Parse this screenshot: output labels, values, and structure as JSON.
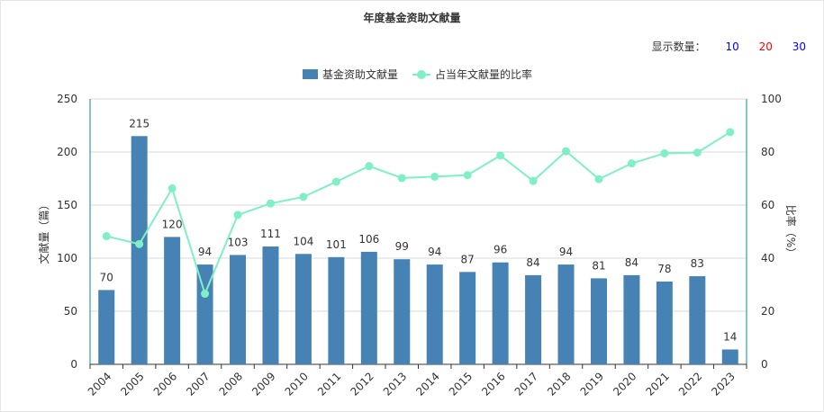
{
  "title": "年度基金资助文献量",
  "count_selector": {
    "label": "显示数量：",
    "options": [
      {
        "label": "10",
        "color": "#0000ff"
      },
      {
        "label": "20",
        "color": "#ff0000"
      },
      {
        "label": "30",
        "color": "#0000ff"
      }
    ]
  },
  "legend": {
    "bar_label": "基金资助文献量",
    "line_label": "占当年文献量的比率"
  },
  "colors": {
    "bar": "#4682b4",
    "line": "#7ff0c6",
    "axis": "#0a8c8c",
    "grid": "#d9d9d9"
  },
  "chart_data": {
    "type": "bar",
    "categories": [
      "2004",
      "2005",
      "2006",
      "2007",
      "2008",
      "2009",
      "2010",
      "2011",
      "2012",
      "2013",
      "2014",
      "2015",
      "2016",
      "2017",
      "2018",
      "2019",
      "2020",
      "2021",
      "2022",
      "2023"
    ],
    "series": [
      {
        "name": "基金资助文献量",
        "type": "bar",
        "axis": "left",
        "values": [
          70,
          215,
          120,
          94,
          103,
          111,
          104,
          101,
          106,
          99,
          94,
          87,
          96,
          84,
          94,
          81,
          84,
          78,
          83,
          14
        ]
      },
      {
        "name": "占当年文献量的比率",
        "type": "line",
        "axis": "right",
        "values": [
          48.3,
          45.3,
          66.3,
          26.6,
          56.3,
          60.6,
          63.1,
          68.8,
          74.7,
          70.2,
          70.7,
          71.3,
          78.7,
          69.1,
          80.3,
          69.8,
          75.7,
          79.5,
          79.8,
          87.5
        ]
      }
    ],
    "ylabel": "文献量（篇）",
    "y2label": "比率（%）",
    "ylim": [
      0,
      250
    ],
    "yticks": [
      0,
      50,
      100,
      150,
      200,
      250
    ],
    "y2lim": [
      0,
      100
    ],
    "y2ticks": [
      0,
      20,
      40,
      60,
      80,
      100
    ],
    "grid": true,
    "legend_position": "top"
  }
}
